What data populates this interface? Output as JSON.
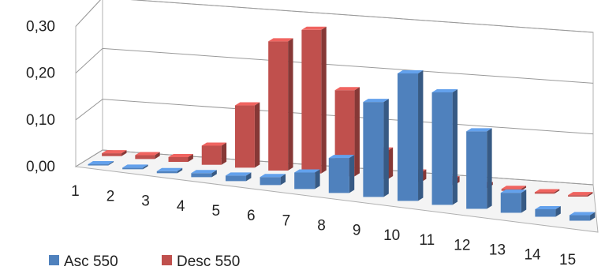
{
  "chart_data": {
    "type": "bar",
    "title": "",
    "xlabel": "",
    "ylabel": "",
    "categories": [
      "1",
      "2",
      "3",
      "4",
      "5",
      "6",
      "7",
      "8",
      "9",
      "10",
      "11",
      "12",
      "13",
      "14",
      "15"
    ],
    "series": [
      {
        "name": "Asc 550",
        "color": "#4f81bd",
        "values": [
          0.002,
          0.003,
          0.004,
          0.008,
          0.011,
          0.016,
          0.033,
          0.07,
          0.19,
          0.255,
          0.225,
          0.155,
          0.04,
          0.015,
          0.011
        ]
      },
      {
        "name": "Desc 550",
        "color": "#c0504d",
        "values": [
          0.006,
          0.008,
          0.01,
          0.04,
          0.13,
          0.27,
          0.3,
          0.18,
          0.06,
          0.02,
          0.012,
          0.006,
          0.004,
          0.003,
          0.003
        ]
      }
    ],
    "ylim": [
      0,
      0.3
    ],
    "yticks": [
      "0,00",
      "0,10",
      "0,20",
      "0,30"
    ],
    "legend": [
      "Asc 550",
      "Desc 550"
    ],
    "legend_position": "bottom-left",
    "grid": true,
    "view": "3d-perspective"
  }
}
